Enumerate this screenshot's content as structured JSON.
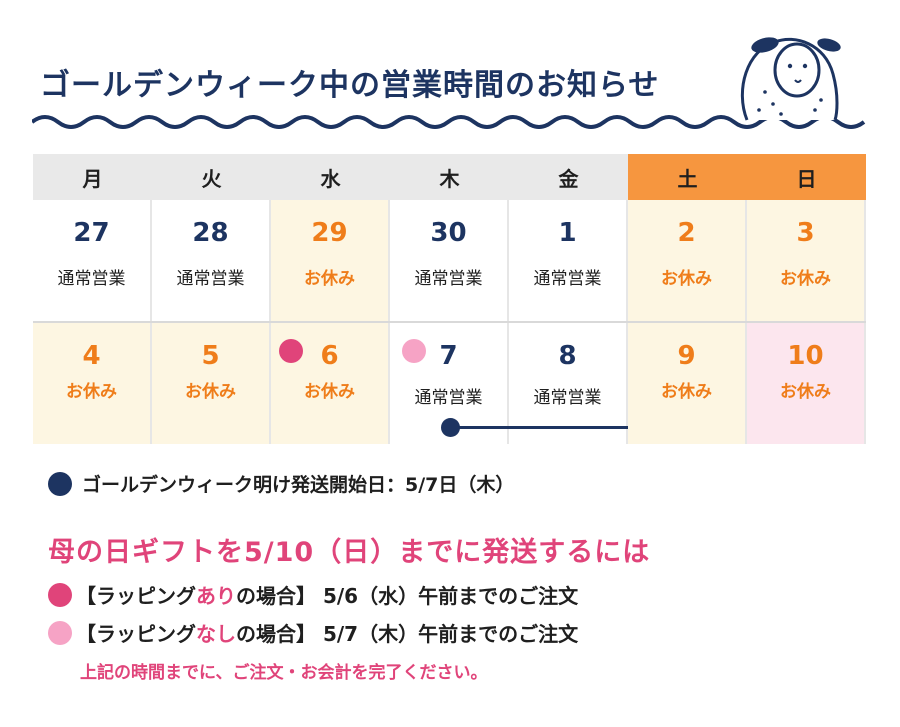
{
  "title": "ゴールデンウィーク中の営業時間のお知らせ",
  "weekdays": [
    "月",
    "火",
    "水",
    "木",
    "金",
    "土",
    "日"
  ],
  "days": [
    {
      "num": "27",
      "status": "通常営業"
    },
    {
      "num": "28",
      "status": "通常営業"
    },
    {
      "num": "29",
      "status": "お休み"
    },
    {
      "num": "30",
      "status": "通常営業"
    },
    {
      "num": "1",
      "status": "通常営業"
    },
    {
      "num": "2",
      "status": "お休み"
    },
    {
      "num": "3",
      "status": "お休み"
    },
    {
      "num": "4",
      "status": "お休み"
    },
    {
      "num": "5",
      "status": "お休み"
    },
    {
      "num": "6",
      "status": "お休み"
    },
    {
      "num": "7",
      "status": "通常営業"
    },
    {
      "num": "8",
      "status": "通常営業"
    },
    {
      "num": "9",
      "status": "お休み"
    },
    {
      "num": "10",
      "status": "お休み"
    }
  ],
  "shipping_note": "ゴールデンウィーク明け発送開始日：5/7日（木）",
  "gift": {
    "title": "母の日ギフトを5/10（日）までに発送するには",
    "row1": {
      "pre": "【ラッピング",
      "highlight": "あり",
      "post": "の場合】 5/6（水）午前までのご注文"
    },
    "row2": {
      "pre": "【ラッピング",
      "highlight": "なし",
      "post": "の場合】 5/7（木）午前までのご注文"
    },
    "footer": "上記の時間までに、ご注文・お会計を完了ください。"
  },
  "colors": {
    "navy": "#1d3461",
    "orange": "#ef7d1a",
    "pink": "#e0447a",
    "light_pink": "#f6a3c5"
  }
}
